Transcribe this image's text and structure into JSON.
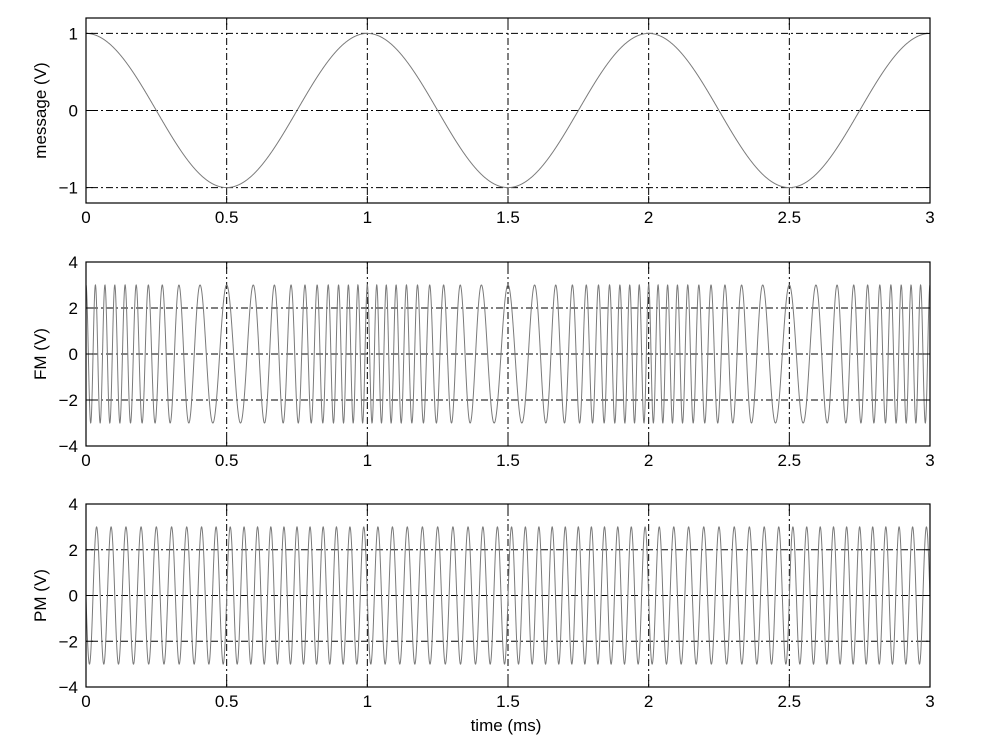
{
  "chart_data": [
    {
      "type": "line",
      "ylabel": "message (V)",
      "xlabel": "",
      "xlim": [
        0,
        3
      ],
      "ylim": [
        -1.2,
        1.2
      ],
      "xticks": [
        0,
        0.5,
        1,
        1.5,
        2,
        2.5,
        3
      ],
      "xtick_labels": [
        "0",
        "0.5",
        "1",
        "1.5",
        "2",
        "2.5",
        "3"
      ],
      "yticks": [
        -1,
        0,
        1
      ],
      "ytick_labels": [
        "−1",
        "0",
        "1"
      ],
      "grid": true,
      "series": [
        {
          "signal": "cosine",
          "amplitude_v": 1,
          "frequency_khz": 1,
          "color": "#7a7a7a"
        }
      ]
    },
    {
      "type": "line",
      "ylabel": "FM (V)",
      "xlabel": "",
      "xlim": [
        0,
        3
      ],
      "ylim": [
        -4,
        4
      ],
      "xticks": [
        0,
        0.5,
        1,
        1.5,
        2,
        2.5,
        3
      ],
      "xtick_labels": [
        "0",
        "0.5",
        "1",
        "1.5",
        "2",
        "2.5",
        "3"
      ],
      "yticks": [
        -4,
        -2,
        0,
        2,
        4
      ],
      "ytick_labels": [
        "−4",
        "−2",
        "0",
        "2",
        "4"
      ],
      "grid": true,
      "series": [
        {
          "signal": "frequency-modulated",
          "amplitude_v": 3,
          "carrier_khz": 20,
          "deviation_khz": 10,
          "message_frequency_khz": 1,
          "color": "#7a7a7a"
        }
      ]
    },
    {
      "type": "line",
      "ylabel": "PM (V)",
      "xlabel": "time (ms)",
      "xlim": [
        0,
        3
      ],
      "ylim": [
        -4,
        4
      ],
      "xticks": [
        0,
        0.5,
        1,
        1.5,
        2,
        2.5,
        3
      ],
      "xtick_labels": [
        "0",
        "0.5",
        "1",
        "1.5",
        "2",
        "2.5",
        "3"
      ],
      "yticks": [
        -4,
        -2,
        0,
        2,
        4
      ],
      "ytick_labels": [
        "−4",
        "−2",
        "0",
        "2",
        "4"
      ],
      "grid": true,
      "series": [
        {
          "signal": "phase-modulated",
          "amplitude_v": 3,
          "carrier_khz": 20,
          "phase_deviation_rad": 1.6,
          "message_frequency_khz": 1,
          "color": "#7a7a7a"
        }
      ]
    }
  ]
}
